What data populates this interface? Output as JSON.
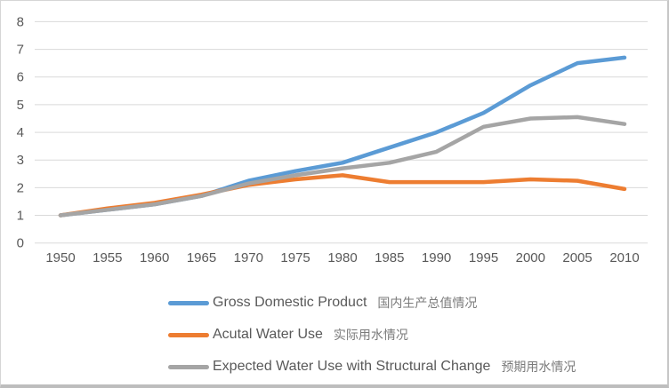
{
  "colors": {
    "gridline": "#d9d9d9",
    "axis_text": "#595959",
    "background": "#ffffff"
  },
  "axes": {
    "y_tick_labels": [
      "0",
      "1",
      "2",
      "3",
      "4",
      "5",
      "6",
      "7",
      "8"
    ],
    "x_tick_labels": [
      "1950",
      "1955",
      "1960",
      "1965",
      "1970",
      "1975",
      "1980",
      "1985",
      "1990",
      "1995",
      "2000",
      "2005",
      "2010"
    ]
  },
  "chart_data": {
    "type": "line",
    "title": "",
    "xlabel": "",
    "ylabel": "",
    "grid": true,
    "legend_position": "bottom",
    "ylim": [
      0,
      8
    ],
    "yticks": [
      0,
      1,
      2,
      3,
      4,
      5,
      6,
      7,
      8
    ],
    "categories": [
      1950,
      1955,
      1960,
      1965,
      1970,
      1975,
      1980,
      1985,
      1990,
      1995,
      2000,
      2005,
      2010
    ],
    "series": [
      {
        "id": "gross-domestic-product",
        "name": "Gross Domestic Product",
        "name_zh": "国内生产总值情况",
        "color": "#5b9bd5",
        "values": [
          1.0,
          1.2,
          1.4,
          1.7,
          2.25,
          2.6,
          2.9,
          3.45,
          4.0,
          4.7,
          5.7,
          6.5,
          6.7
        ]
      },
      {
        "id": "actual-water-use",
        "name": "Acutal Water Use",
        "name_zh": "实际用水情况",
        "color": "#ed7d31",
        "values": [
          1.0,
          1.25,
          1.45,
          1.75,
          2.1,
          2.3,
          2.45,
          2.2,
          2.2,
          2.2,
          2.3,
          2.25,
          1.95
        ]
      },
      {
        "id": "expected-water-use-structural-change",
        "name": "Expected Water Use with Structural Change",
        "name_zh": "预期用水情况",
        "color": "#a5a5a5",
        "values": [
          1.0,
          1.2,
          1.4,
          1.7,
          2.15,
          2.45,
          2.7,
          2.9,
          3.3,
          4.2,
          4.5,
          4.55,
          4.3
        ]
      }
    ]
  }
}
